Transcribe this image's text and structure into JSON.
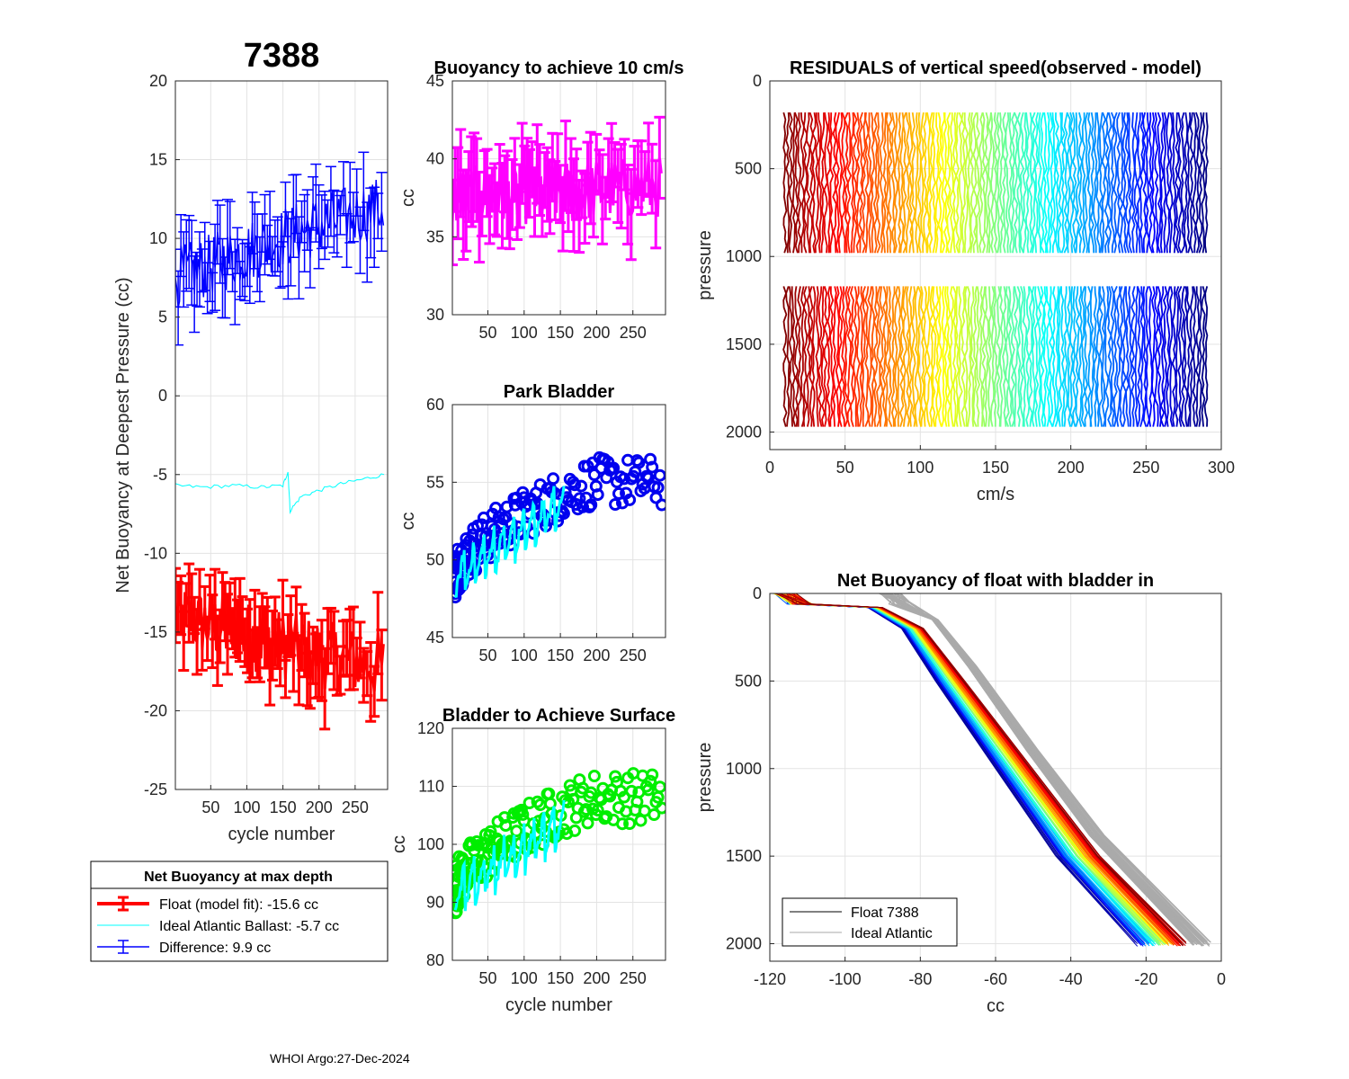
{
  "figure": {
    "main_title": "7388",
    "footer": "WHOI Argo:27-Dec-2024",
    "colors": {
      "float_fit": "#ff0000",
      "ideal": "#00ffff",
      "difference": "#0000ff",
      "buoyancy10": "#ff00ff",
      "park": "#0000ee",
      "park_fit": "#00ffff",
      "surface": "#00ee00",
      "surface_fit": "#00ffff",
      "ideal_profile": "#aaaaaa",
      "float_profile": "#000000"
    }
  },
  "legend_main": {
    "title": "Net Buoyancy at max depth",
    "entries": [
      "Float (model fit): -15.6 cc",
      "Ideal Atlantic Ballast:  -5.7 cc",
      "Difference:   9.9 cc"
    ]
  },
  "legend_profiles": {
    "entries": [
      "Float 7388",
      "Ideal Atlantic"
    ]
  },
  "chart_data": [
    {
      "id": "net_buoyancy",
      "type": "line",
      "title": "",
      "xlabel": "cycle number",
      "ylabel": "Net Buoyancy at Deepest Pressure (cc)",
      "xlim": [
        1,
        295
      ],
      "ylim": [
        -25,
        20
      ],
      "xticks": [
        50,
        100,
        150,
        200,
        250
      ],
      "yticks": [
        -25,
        -20,
        -15,
        -10,
        -5,
        0,
        5,
        10,
        15,
        20
      ],
      "series": [
        {
          "name": "Float (model fit)",
          "style": "errorbar",
          "x_start": 1,
          "x_end": 290,
          "mean_start": -14,
          "mean_end": -17.2,
          "spread": 2.2,
          "err": 1.9
        },
        {
          "name": "Ideal Atlantic Ballast",
          "style": "line",
          "x": [
            1,
            40,
            80,
            120,
            150,
            157,
            160,
            175,
            200,
            230,
            260,
            290
          ],
          "y": [
            -5.7,
            -5.8,
            -5.7,
            -5.8,
            -5.7,
            -4.8,
            -7.3,
            -6.4,
            -6.0,
            -5.6,
            -5.3,
            -5.0
          ]
        },
        {
          "name": "Difference",
          "style": "errorbar",
          "x_start": 1,
          "x_end": 290,
          "mean_start": 7.5,
          "mean_end": 12.0,
          "spread": 2.0,
          "err": 2.0
        }
      ]
    },
    {
      "id": "buoyancy_10cms",
      "type": "line",
      "title": "Buoyancy to achieve 10 cm/s",
      "xlabel": "",
      "ylabel": "cc",
      "xlim": [
        1,
        295
      ],
      "ylim": [
        30,
        45
      ],
      "xticks": [
        50,
        100,
        150,
        200,
        250
      ],
      "yticks": [
        30,
        35,
        40,
        45
      ],
      "series": [
        {
          "name": "buoyancy",
          "style": "errorbar",
          "x_start": 1,
          "x_end": 290,
          "mean_start": 37.5,
          "mean_end": 38.2,
          "spread": 2.0,
          "err": 2.2
        }
      ]
    },
    {
      "id": "park_bladder",
      "type": "scatter",
      "title": "Park Bladder",
      "xlabel": "",
      "ylabel": "cc",
      "xlim": [
        1,
        295
      ],
      "ylim": [
        45,
        60
      ],
      "xticks": [
        50,
        100,
        150,
        200,
        250
      ],
      "yticks": [
        45,
        50,
        55,
        60
      ],
      "series": [
        {
          "name": "park",
          "style": "circles",
          "x_start": 5,
          "x_end": 290,
          "mean_start": 49.0,
          "mean_end": 55.0,
          "spread": 1.6
        },
        {
          "name": "park fit",
          "style": "line",
          "x_start": 5,
          "x_end": 155,
          "mean_start": 49.0,
          "mean_end": 53.8,
          "spread": 1.5
        }
      ]
    },
    {
      "id": "bladder_surface",
      "type": "scatter",
      "title": "Bladder to Achieve Surface",
      "xlabel": "cycle number",
      "ylabel": "cc",
      "xlim": [
        1,
        295
      ],
      "ylim": [
        80,
        120
      ],
      "xticks": [
        50,
        100,
        150,
        200,
        250
      ],
      "yticks": [
        80,
        90,
        100,
        110,
        120
      ],
      "series": [
        {
          "name": "surface",
          "style": "circles",
          "x_start": 5,
          "x_end": 290,
          "mean_start": 92,
          "mean_end": 108,
          "spread": 4.5
        },
        {
          "name": "surface fit",
          "style": "line",
          "x_start": 5,
          "x_end": 155,
          "mean_start": 92,
          "mean_end": 104,
          "spread": 4.0
        }
      ]
    },
    {
      "id": "residuals",
      "type": "line",
      "title": "RESIDUALS of vertical speed(observed - model)",
      "xlabel": "cm/s",
      "ylabel": "pressure",
      "xlim": [
        0,
        300
      ],
      "ylim": [
        0,
        2100
      ],
      "y_reversed": true,
      "xticks": [
        0,
        50,
        100,
        150,
        200,
        250,
        300
      ],
      "yticks": [
        0,
        500,
        1000,
        1500,
        2000
      ],
      "series": [
        {
          "name": "residual profiles",
          "style": "offset-profiles",
          "x_start": 10,
          "x_end": 290,
          "segments": [
            [
              180,
              1010
            ],
            [
              1170,
              1990
            ]
          ]
        }
      ]
    },
    {
      "id": "net_buoyancy_profiles",
      "type": "line",
      "title": "Net Buoyancy of float with bladder in",
      "xlabel": "cc",
      "ylabel": "pressure",
      "xlim": [
        -120,
        0
      ],
      "ylim": [
        0,
        2100
      ],
      "y_reversed": true,
      "xticks": [
        -120,
        -100,
        -80,
        -60,
        -40,
        -20,
        0
      ],
      "yticks": [
        0,
        500,
        1000,
        1500,
        2000
      ],
      "series": [
        {
          "name": "Float 7388",
          "style": "profiles",
          "knots": [
            [
              -116,
              0
            ],
            [
              -112,
              60
            ],
            [
              -92,
              80
            ],
            [
              -82,
              200
            ],
            [
              -72,
              500
            ],
            [
              -55,
              1000
            ],
            [
              -38,
              1500
            ],
            [
              -16,
              2000
            ]
          ]
        },
        {
          "name": "Ideal Atlantic",
          "style": "profiles",
          "knots": [
            [
              -88,
              0
            ],
            [
              -85,
              60
            ],
            [
              -76,
              150
            ],
            [
              -66,
              420
            ],
            [
              -50,
              900
            ],
            [
              -33,
              1380
            ],
            [
              -5,
              2000
            ]
          ]
        }
      ]
    }
  ]
}
